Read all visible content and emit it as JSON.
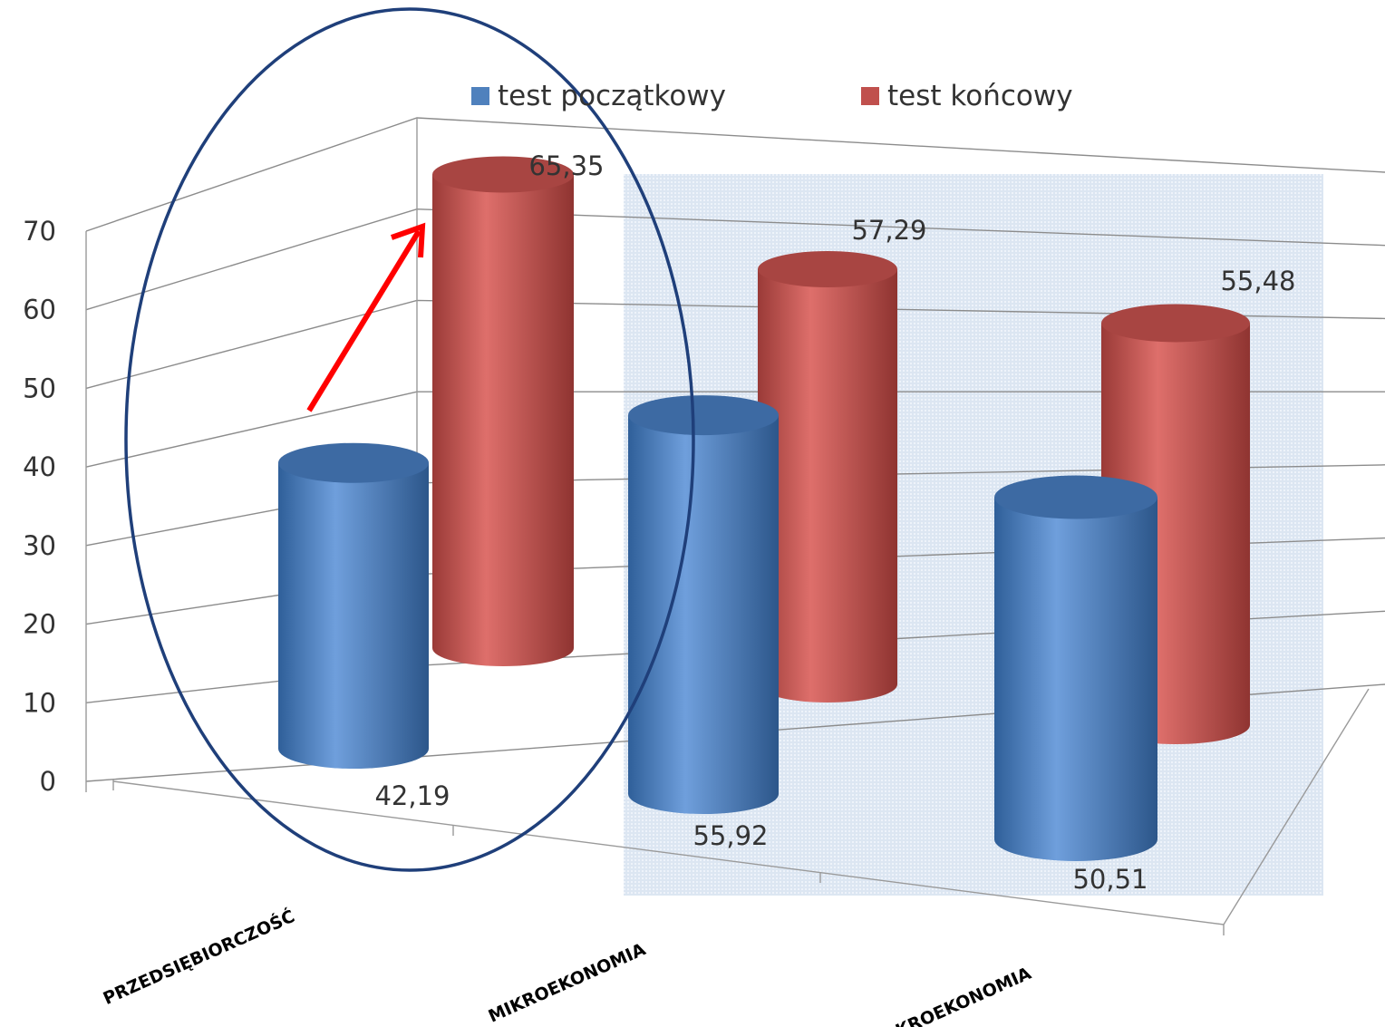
{
  "chart_data": {
    "type": "bar",
    "bar_shape": "cylinder",
    "projection": "3d",
    "categories": [
      "PRZEDSIĘBIORCZOŚĆ",
      "MIKROEKONOMIA",
      "MAKROEKONOMIA"
    ],
    "series": [
      {
        "name": "test początkowy",
        "values": [
          42.19,
          55.92,
          50.51
        ],
        "value_labels": [
          "42,19",
          "55,92",
          "50,51"
        ],
        "color": "#4f81bd"
      },
      {
        "name": "test końcowy",
        "values": [
          65.35,
          57.29,
          55.48
        ],
        "value_labels": [
          "65,35",
          "57,29",
          "55,48"
        ],
        "color": "#c0504d"
      }
    ],
    "ylim": [
      0,
      70
    ],
    "yticks": [
      0,
      10,
      20,
      30,
      40,
      50,
      60,
      70
    ],
    "grid": true,
    "legend": "top",
    "annotations": [
      {
        "kind": "ellipse",
        "target": "PRZEDSIĘBIORCZOŚĆ",
        "color": "#1f3f7a"
      },
      {
        "kind": "arrow",
        "from": "test początkowy",
        "to": "test końcowy",
        "category": "PRZEDSIĘBIORCZOŚĆ",
        "color": "#ff0000"
      }
    ],
    "highlight_background": "#dce6f2"
  }
}
